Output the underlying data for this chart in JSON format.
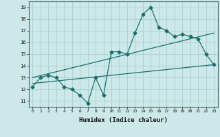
{
  "xlabel": "Humidex (Indice chaleur)",
  "ylabel": "",
  "xlim": [
    -0.5,
    23.5
  ],
  "ylim": [
    10.5,
    19.5
  ],
  "xticks": [
    0,
    1,
    2,
    3,
    4,
    5,
    6,
    7,
    8,
    9,
    10,
    11,
    12,
    13,
    14,
    15,
    16,
    17,
    18,
    19,
    20,
    21,
    22,
    23
  ],
  "yticks": [
    11,
    12,
    13,
    14,
    15,
    16,
    17,
    18,
    19
  ],
  "bg_color": "#cde8e8",
  "grid_color": "#aacece",
  "line_color": "#1a6e6e",
  "main_x": [
    0,
    1,
    2,
    3,
    4,
    5,
    6,
    7,
    8,
    9,
    10,
    11,
    12,
    13,
    14,
    15,
    16,
    17,
    18,
    19,
    20,
    21,
    22,
    23
  ],
  "main_y": [
    12.2,
    13.0,
    13.2,
    13.0,
    12.2,
    12.0,
    11.5,
    10.8,
    13.0,
    11.5,
    15.2,
    15.2,
    15.0,
    16.8,
    18.4,
    19.0,
    17.3,
    17.0,
    16.5,
    16.7,
    16.5,
    16.3,
    15.0,
    14.1
  ],
  "trend1_x": [
    0,
    23
  ],
  "trend1_y": [
    13.0,
    16.8
  ],
  "trend2_x": [
    0,
    23
  ],
  "trend2_y": [
    12.5,
    14.1
  ],
  "marker_size": 2.5,
  "linewidth": 0.9
}
